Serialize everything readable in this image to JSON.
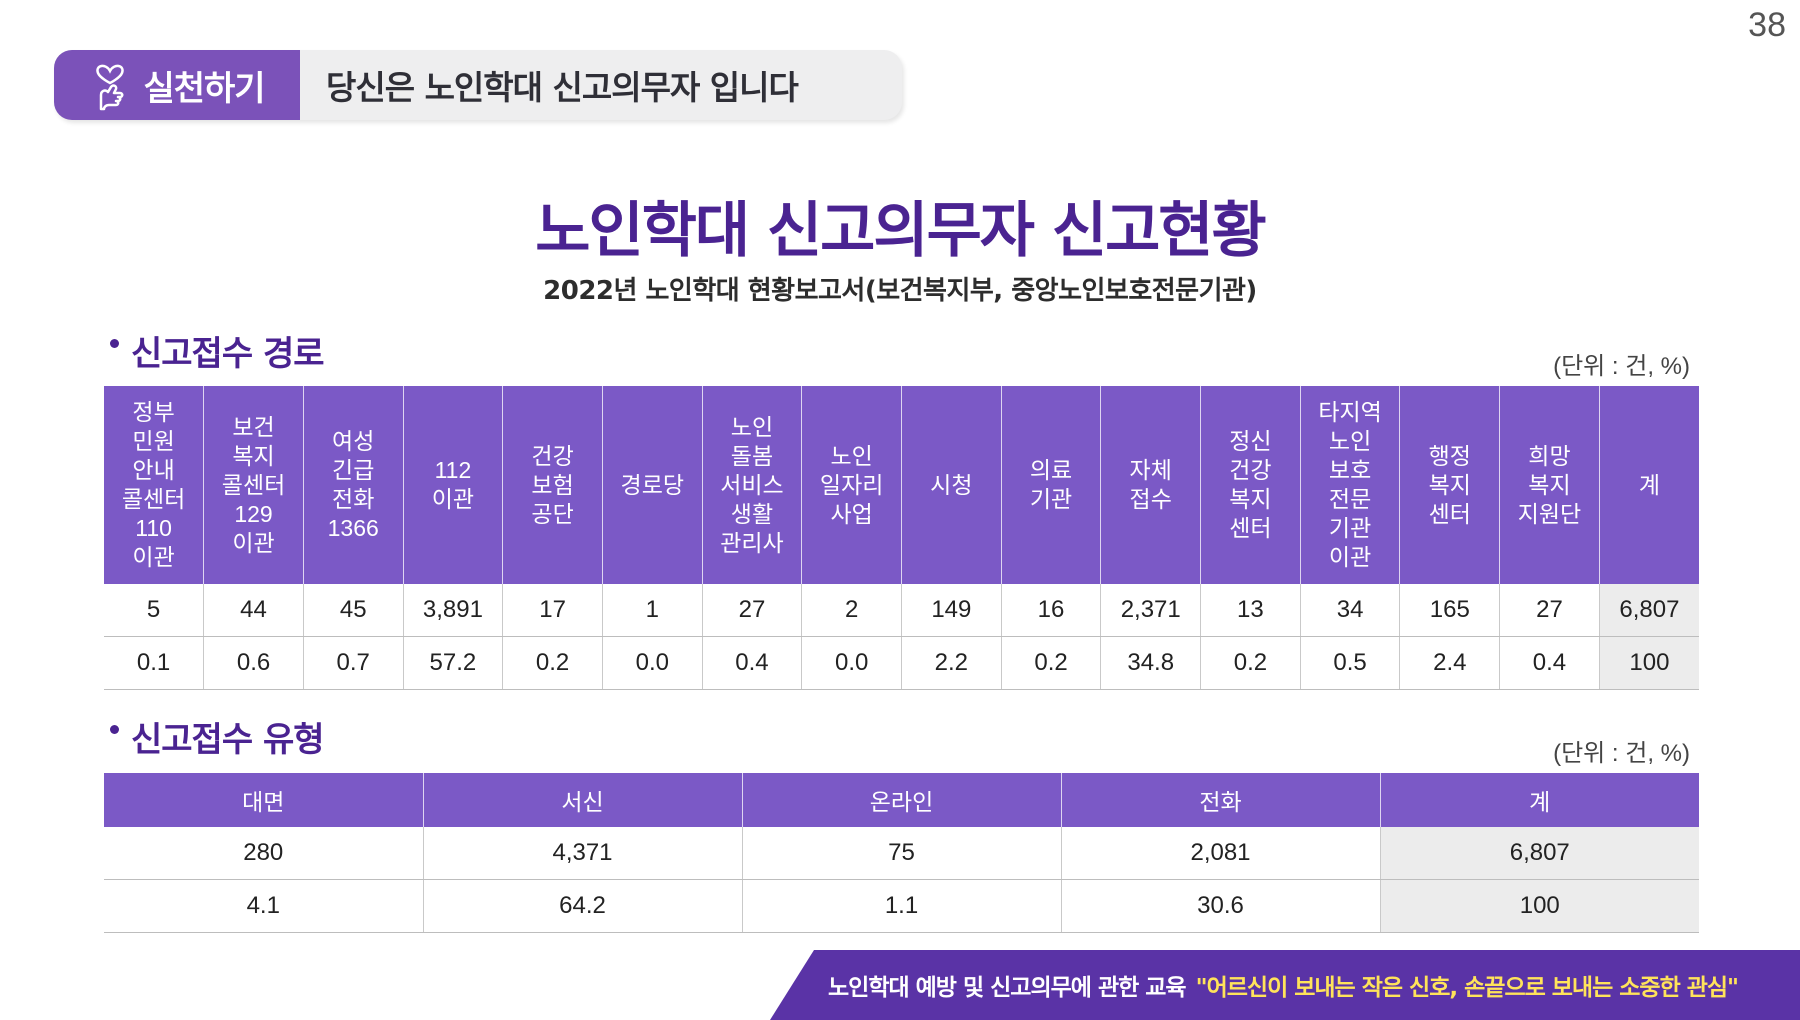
{
  "page_number": "38",
  "header": {
    "tag_label": "실천하기",
    "tag_icon": "heart-hand-icon",
    "text": "당신은 노인학대 신고의무자 입니다"
  },
  "title": "노인학대 신고의무자 신고현황",
  "subtitle": "2022년 노인학대 현황보고서(보건복지부, 중앙노인보호전문기관)",
  "route_section": {
    "heading": "신고접수 경로",
    "unit": "(단위 : 건, %)",
    "columns": [
      "정부\n민원\n안내\n콜센터\n110\n이관",
      "보건\n복지\n콜센터\n129\n이관",
      "여성\n긴급\n전화\n1366",
      "112\n이관",
      "건강\n보험\n공단",
      "경로당",
      "노인\n돌봄\n서비스\n생활\n관리사",
      "노인\n일자리\n사업",
      "시청",
      "의료\n기관",
      "자체\n접수",
      "정신\n건강\n복지\n센터",
      "타지역\n노인\n보호\n전문\n기관\n이관",
      "행정\n복지\n센터",
      "희망\n복지\n지원단",
      "계"
    ],
    "rows": [
      [
        "5",
        "44",
        "45",
        "3,891",
        "17",
        "1",
        "27",
        "2",
        "149",
        "16",
        "2,371",
        "13",
        "34",
        "165",
        "27",
        "6,807"
      ],
      [
        "0.1",
        "0.6",
        "0.7",
        "57.2",
        "0.2",
        "0.0",
        "0.4",
        "0.0",
        "2.2",
        "0.2",
        "34.8",
        "0.2",
        "0.5",
        "2.4",
        "0.4",
        "100"
      ]
    ]
  },
  "type_section": {
    "heading": "신고접수 유형",
    "unit": "(단위 : 건, %)",
    "columns": [
      "대면",
      "서신",
      "온라인",
      "전화",
      "계"
    ],
    "rows": [
      [
        "280",
        "4,371",
        "75",
        "2,081",
        "6,807"
      ],
      [
        "4.1",
        "64.2",
        "1.1",
        "30.6",
        "100"
      ]
    ]
  },
  "footer": {
    "text": "노인학대 예방 및 신고의무에 관한 교육",
    "slogan": "\"어르신이 보내는 작은 신호, 손끝으로 보내는 소중한 관심\""
  },
  "colors": {
    "purple_accent": "#7b52b9",
    "title_purple": "#4a2391",
    "table_header": "#7b59c6",
    "footer_bg": "#5a33a6",
    "footer_highlight": "#ffe35a"
  }
}
